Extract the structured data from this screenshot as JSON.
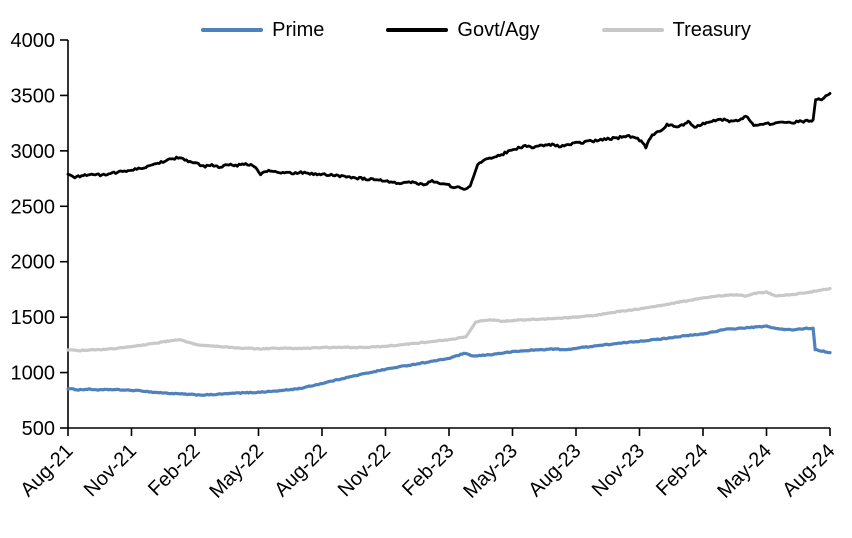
{
  "chart": {
    "background": "#ffffff",
    "axis_color": "#000000",
    "text_color": "#000000"
  },
  "chart_data": {
    "type": "line",
    "title": "",
    "xlabel": "",
    "ylabel": "",
    "grid": "off",
    "legend_position": "top",
    "x_axis": {
      "range_months": [
        0,
        36
      ],
      "tick_positions_months": [
        0,
        3,
        6,
        9,
        12,
        15,
        18,
        21,
        24,
        27,
        30,
        33,
        36
      ],
      "tick_labels": [
        "Aug-21",
        "Nov-21",
        "Feb-22",
        "May-22",
        "Aug-22",
        "Nov-22",
        "Feb-23",
        "May-23",
        "Aug-23",
        "Nov-23",
        "Feb-24",
        "May-24",
        "Aug-24"
      ]
    },
    "y_axis": {
      "min": 500,
      "max": 4000,
      "step": 500,
      "tick_labels": [
        "500",
        "1000",
        "1500",
        "2000",
        "2500",
        "3000",
        "3500",
        "4000"
      ]
    },
    "series": [
      {
        "name": "Prime",
        "color": "#4f81bd",
        "width": 3.2,
        "jitter": 4,
        "points": [
          [
            0,
            855
          ],
          [
            0.5,
            845
          ],
          [
            1,
            850
          ],
          [
            1.5,
            843
          ],
          [
            2,
            847
          ],
          [
            3,
            840
          ],
          [
            3.5,
            835
          ],
          [
            4,
            823
          ],
          [
            5,
            810
          ],
          [
            6,
            800
          ],
          [
            6.5,
            798
          ],
          [
            7,
            803
          ],
          [
            8,
            815
          ],
          [
            9,
            822
          ],
          [
            10,
            836
          ],
          [
            11,
            858
          ],
          [
            12,
            902
          ],
          [
            13,
            948
          ],
          [
            14,
            990
          ],
          [
            15,
            1030
          ],
          [
            16,
            1063
          ],
          [
            17,
            1095
          ],
          [
            18,
            1128
          ],
          [
            18.7,
            1172
          ],
          [
            19.2,
            1148
          ],
          [
            20,
            1163
          ],
          [
            21,
            1188
          ],
          [
            22,
            1203
          ],
          [
            23,
            1213
          ],
          [
            23.5,
            1204
          ],
          [
            24,
            1220
          ],
          [
            25,
            1243
          ],
          [
            26,
            1263
          ],
          [
            27,
            1283
          ],
          [
            28,
            1303
          ],
          [
            29,
            1328
          ],
          [
            30,
            1348
          ],
          [
            31,
            1388
          ],
          [
            32,
            1403
          ],
          [
            33,
            1418
          ],
          [
            33.6,
            1392
          ],
          [
            34.2,
            1385
          ],
          [
            34.8,
            1398
          ],
          [
            35.2,
            1400
          ],
          [
            35.3,
            1208
          ],
          [
            35.7,
            1192
          ],
          [
            36,
            1180
          ]
        ]
      },
      {
        "name": "Govt/Agy",
        "color": "#000000",
        "width": 2.8,
        "jitter": 10,
        "points": [
          [
            0,
            2780
          ],
          [
            0.4,
            2762
          ],
          [
            0.8,
            2783
          ],
          [
            1.2,
            2790
          ],
          [
            1.6,
            2778
          ],
          [
            2,
            2800
          ],
          [
            2.5,
            2810
          ],
          [
            3,
            2828
          ],
          [
            3.5,
            2845
          ],
          [
            4,
            2868
          ],
          [
            4.4,
            2900
          ],
          [
            4.8,
            2925
          ],
          [
            5.2,
            2938
          ],
          [
            5.6,
            2915
          ],
          [
            6,
            2890
          ],
          [
            6.4,
            2858
          ],
          [
            6.8,
            2872
          ],
          [
            7.2,
            2848
          ],
          [
            7.6,
            2880
          ],
          [
            8,
            2868
          ],
          [
            8.4,
            2885
          ],
          [
            8.8,
            2862
          ],
          [
            9.1,
            2788
          ],
          [
            9.4,
            2820
          ],
          [
            9.8,
            2808
          ],
          [
            10.4,
            2798
          ],
          [
            11,
            2805
          ],
          [
            11.6,
            2792
          ],
          [
            12.2,
            2786
          ],
          [
            13,
            2772
          ],
          [
            14,
            2748
          ],
          [
            15,
            2726
          ],
          [
            15.6,
            2712
          ],
          [
            16.2,
            2718
          ],
          [
            16.8,
            2698
          ],
          [
            17.2,
            2728
          ],
          [
            17.6,
            2702
          ],
          [
            18,
            2688
          ],
          [
            18.4,
            2668
          ],
          [
            18.7,
            2658
          ],
          [
            19,
            2682
          ],
          [
            19.35,
            2872
          ],
          [
            19.7,
            2918
          ],
          [
            20,
            2938
          ],
          [
            20.4,
            2958
          ],
          [
            20.8,
            2995
          ],
          [
            21.2,
            3022
          ],
          [
            21.6,
            3042
          ],
          [
            22,
            3028
          ],
          [
            22.4,
            3048
          ],
          [
            22.8,
            3058
          ],
          [
            23.2,
            3038
          ],
          [
            23.6,
            3052
          ],
          [
            24,
            3068
          ],
          [
            24.5,
            3082
          ],
          [
            25,
            3092
          ],
          [
            25.5,
            3108
          ],
          [
            26,
            3118
          ],
          [
            26.5,
            3138
          ],
          [
            27,
            3098
          ],
          [
            27.3,
            3032
          ],
          [
            27.6,
            3148
          ],
          [
            28,
            3178
          ],
          [
            28.3,
            3238
          ],
          [
            28.7,
            3218
          ],
          [
            29,
            3228
          ],
          [
            29.3,
            3268
          ],
          [
            29.6,
            3218
          ],
          [
            30,
            3248
          ],
          [
            30.5,
            3268
          ],
          [
            31,
            3282
          ],
          [
            31.4,
            3262
          ],
          [
            31.8,
            3292
          ],
          [
            32.1,
            3308
          ],
          [
            32.4,
            3232
          ],
          [
            33,
            3242
          ],
          [
            33.5,
            3252
          ],
          [
            34,
            3255
          ],
          [
            34.5,
            3262
          ],
          [
            35,
            3270
          ],
          [
            35.2,
            3280
          ],
          [
            35.32,
            3458
          ],
          [
            35.6,
            3468
          ],
          [
            35.8,
            3488
          ],
          [
            36,
            3518
          ]
        ]
      },
      {
        "name": "Treasury",
        "color": "#c8c8c8",
        "width": 3.2,
        "jitter": 4,
        "points": [
          [
            0,
            1205
          ],
          [
            0.5,
            1198
          ],
          [
            1,
            1202
          ],
          [
            2,
            1212
          ],
          [
            3,
            1235
          ],
          [
            4,
            1262
          ],
          [
            5,
            1292
          ],
          [
            5.3,
            1300
          ],
          [
            5.7,
            1272
          ],
          [
            6,
            1255
          ],
          [
            6.5,
            1242
          ],
          [
            7,
            1235
          ],
          [
            8,
            1224
          ],
          [
            9,
            1214
          ],
          [
            10,
            1220
          ],
          [
            11,
            1217
          ],
          [
            12,
            1226
          ],
          [
            13,
            1228
          ],
          [
            14,
            1227
          ],
          [
            15,
            1236
          ],
          [
            16,
            1256
          ],
          [
            17,
            1276
          ],
          [
            18,
            1296
          ],
          [
            18.8,
            1322
          ],
          [
            19.25,
            1452
          ],
          [
            19.6,
            1468
          ],
          [
            20,
            1478
          ],
          [
            20.5,
            1462
          ],
          [
            21,
            1470
          ],
          [
            22,
            1480
          ],
          [
            23,
            1488
          ],
          [
            24,
            1500
          ],
          [
            25,
            1520
          ],
          [
            26,
            1550
          ],
          [
            27,
            1575
          ],
          [
            28,
            1605
          ],
          [
            29,
            1640
          ],
          [
            30,
            1675
          ],
          [
            31,
            1695
          ],
          [
            31.5,
            1702
          ],
          [
            32,
            1690
          ],
          [
            32.5,
            1716
          ],
          [
            33,
            1726
          ],
          [
            33.4,
            1692
          ],
          [
            34,
            1700
          ],
          [
            35,
            1724
          ],
          [
            36,
            1758
          ]
        ]
      }
    ]
  }
}
